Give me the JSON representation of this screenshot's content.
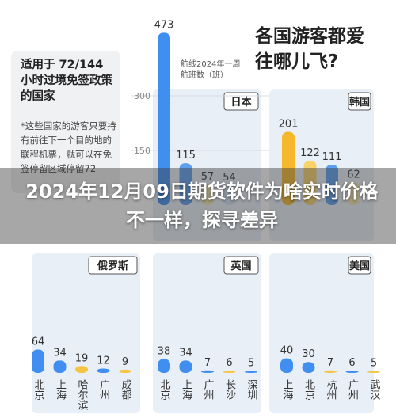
{
  "headline": "各国游客都爱往哪儿飞?",
  "box": {
    "title": "适用于 72/144 小时过境免签政策的国家",
    "note": "*这些国家的游客只要持有前往下一个目的地的联程机票，就可以在免签停留区域停留72"
  },
  "annotation": "航线2024年一周航班数（班）",
  "banner": "2024年12月09日期货软件为啥实时价格不一样，探寻差异",
  "chart_data": [
    {
      "type": "bar",
      "title": "日本",
      "categories": [
        null,
        null,
        null,
        null
      ],
      "values": [
        473,
        115,
        57,
        54
      ],
      "colors": [
        "#3f8ef0",
        "#5d9fee",
        "#f3e6b0",
        "#cfe0f5"
      ],
      "ylim": [
        0,
        500
      ],
      "yticks": [
        150,
        300
      ]
    },
    {
      "type": "bar",
      "title": "韩国",
      "categories": [
        null,
        null,
        null,
        null
      ],
      "values": [
        201,
        122,
        111,
        62
      ],
      "colors": [
        "#f5b72c",
        "#f7d36a",
        "#5d9fee",
        "#f3e6b0"
      ],
      "ylim": [
        0,
        500
      ]
    },
    {
      "type": "bar",
      "title": "俄罗斯",
      "categories": [
        "北京",
        "上海",
        "哈尔滨",
        "广州",
        "成都"
      ],
      "values": [
        64,
        34,
        19,
        12,
        9
      ],
      "colors": [
        "#3f8ef0",
        "#3f8ef0",
        "#f5c542",
        "#3f8ef0",
        "#f5c542"
      ],
      "ylim": [
        0,
        320
      ]
    },
    {
      "type": "bar",
      "title": "英国",
      "categories": [
        "北京",
        "上海",
        "广州",
        "长沙",
        "深圳"
      ],
      "values": [
        38,
        34,
        7,
        6,
        5
      ],
      "colors": [
        "#3f8ef0",
        "#3f8ef0",
        "#3f8ef0",
        "#f5c542",
        "#3f8ef0"
      ],
      "ylim": [
        0,
        320
      ]
    },
    {
      "type": "bar",
      "title": "美国",
      "categories": [
        "上海",
        "北京",
        "杭州",
        "广州",
        "武汉"
      ],
      "values": [
        40,
        30,
        7,
        6,
        5
      ],
      "colors": [
        "#3f8ef0",
        "#3f8ef0",
        "#f5c542",
        "#3f8ef0",
        "#f5c542"
      ],
      "ylim": [
        0,
        320
      ]
    }
  ]
}
